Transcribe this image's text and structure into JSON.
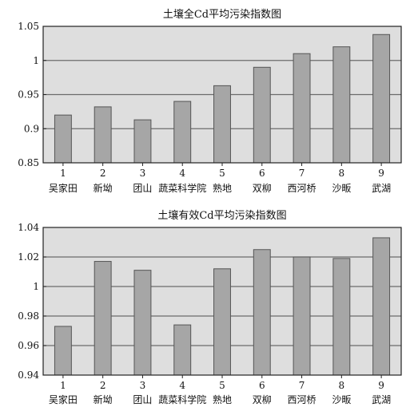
{
  "chart_data": [
    {
      "type": "bar",
      "title": "土壤全Cd平均污染指数图",
      "categories": [
        "1",
        "2",
        "3",
        "4",
        "5",
        "6",
        "7",
        "8",
        "9"
      ],
      "category_names": [
        "吴家田",
        "新坳",
        "团山",
        "蔬菜科学院",
        "熟地",
        "双柳",
        "西河桥",
        "沙畈",
        "武湖"
      ],
      "values": [
        0.92,
        0.932,
        0.913,
        0.94,
        0.963,
        0.99,
        1.01,
        1.02,
        1.038
      ],
      "ylim": [
        0.85,
        1.05
      ],
      "yticks": [
        0.85,
        0.9,
        0.95,
        1,
        1.05
      ],
      "ytick_labels": [
        "0.85",
        "0.9",
        "0.95",
        "1",
        "1.05"
      ],
      "grid": true
    },
    {
      "type": "bar",
      "title": "土壤有效Cd平均污染指数图",
      "categories": [
        "1",
        "2",
        "3",
        "4",
        "5",
        "6",
        "7",
        "8",
        "9"
      ],
      "category_names": [
        "吴家田",
        "新坳",
        "团山",
        "蔬菜科学院",
        "熟地",
        "双柳",
        "西河桥",
        "沙畈",
        "武湖"
      ],
      "values": [
        0.973,
        1.017,
        1.011,
        0.974,
        1.012,
        1.025,
        1.02,
        1.019,
        1.033
      ],
      "ylim": [
        0.94,
        1.04
      ],
      "yticks": [
        0.94,
        0.96,
        0.98,
        1,
        1.02,
        1.04
      ],
      "ytick_labels": [
        "0.94",
        "0.96",
        "0.98",
        "1",
        "1.02",
        "1.04"
      ],
      "grid": true
    }
  ],
  "colors": {
    "bar_fill": "#a6a6a6",
    "bar_stroke": "#555555",
    "plot_background": "#dedede",
    "grid": "#6b6b6b",
    "axis": "#222222"
  }
}
